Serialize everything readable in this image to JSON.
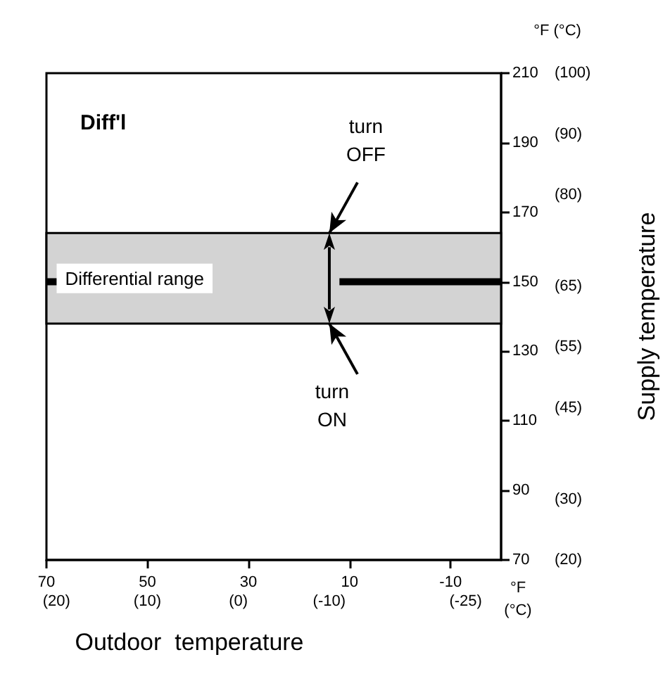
{
  "chart_data": {
    "type": "line",
    "title": "Diff'l",
    "xlabel": "Outdoor  temperature",
    "y2label": "Supply temperature",
    "xlim": [
      70,
      -20
    ],
    "xticks": [
      70,
      50,
      30,
      10,
      -10
    ],
    "x2lim": [
      21.1,
      -28.9
    ],
    "x2ticks": [
      {
        "value": 20,
        "label": "(20)"
      },
      {
        "value": 10,
        "label": "(10)"
      },
      {
        "value": 0,
        "label": "(0)"
      },
      {
        "value": -10,
        "label": "(-10)"
      },
      {
        "value": -25,
        "label": "(-25)"
      }
    ],
    "ylim": [
      70,
      210
    ],
    "yticks": [
      70,
      90,
      110,
      130,
      150,
      170,
      190,
      210
    ],
    "y2lim": [
      20,
      100
    ],
    "y2ticks": [
      {
        "value": 20,
        "label": "(20)"
      },
      {
        "value": 30,
        "label": "(30)"
      },
      {
        "value": 45,
        "label": "(45)"
      },
      {
        "value": 55,
        "label": "(55)"
      },
      {
        "value": 65,
        "label": "(65)"
      },
      {
        "value": 80,
        "label": "(80)"
      },
      {
        "value": 90,
        "label": "(90)"
      },
      {
        "value": 100,
        "label": "(100)"
      }
    ],
    "series": [
      {
        "color": "#000000",
        "x": [
          70,
          68,
          40,
          12,
          -20
        ],
        "values": [
          150,
          150,
          null,
          150,
          150
        ]
      }
    ],
    "bands": [
      {
        "axis": "y",
        "from": 138,
        "to": 164,
        "label": "Differential range",
        "color": "#d3d3d3"
      }
    ],
    "annotations": [
      "°F (°C)",
      "°F (°C)",
      {
        "text": "turn OFF",
        "x": 14,
        "y": 164
      },
      {
        "text": "turn ON",
        "x": 14,
        "y": 138
      }
    ],
    "grid": false,
    "marker": "none",
    "line_style": "solid"
  }
}
